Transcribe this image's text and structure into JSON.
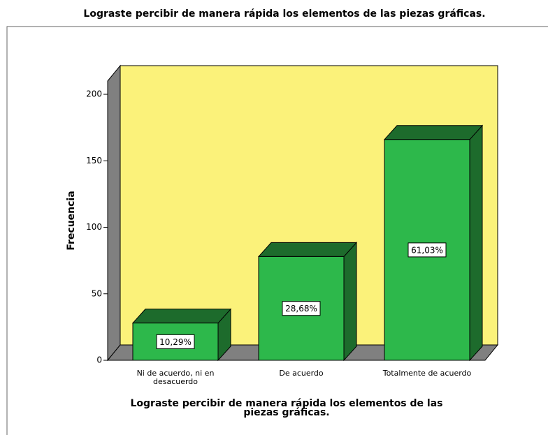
{
  "chart_data": {
    "type": "bar3d",
    "title": "Lograste percibir de manera rápida los elementos de las piezas gráficas.",
    "x_label": "Lograste percibir de manera rápida los elementos de las piezas gráficas.",
    "y_label": "Frecuencia",
    "categories": [
      "Ni de acuerdo, ni en desacuerdo",
      "De acuerdo",
      "Totalmente de acuerdo"
    ],
    "values": [
      28,
      78,
      166
    ],
    "percentages": [
      10.29,
      28.68,
      61.03
    ],
    "value_labels": [
      "10,29%",
      "28,68%",
      "61,03%"
    ],
    "color": "#2db84b",
    "ylim": [
      0,
      210
    ],
    "yticks": [
      0,
      50,
      100,
      150,
      200
    ]
  }
}
